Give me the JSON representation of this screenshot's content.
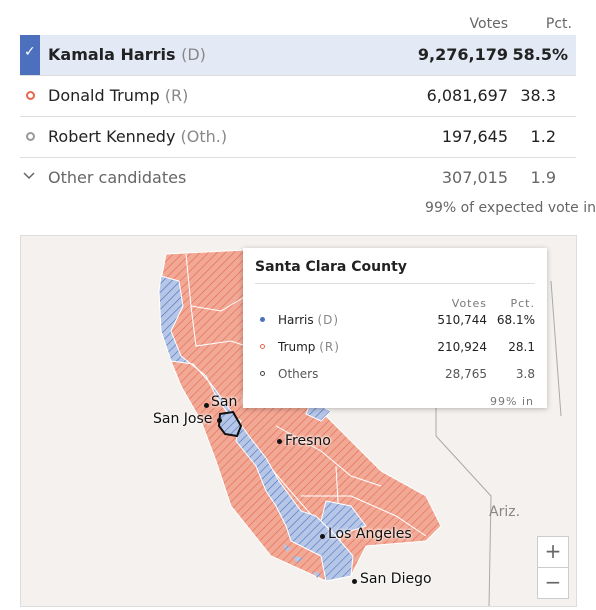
{
  "results": {
    "header": {
      "votes": "Votes",
      "pct": "Pct."
    },
    "rows": [
      {
        "name": "Kamala Harris",
        "party": "(D)",
        "votes": "9,276,179",
        "pct": "58.5%"
      },
      {
        "name": "Donald Trump",
        "party": "(R)",
        "votes": "6,081,697",
        "pct": "38.3"
      },
      {
        "name": "Robert Kennedy",
        "party": "(Oth.)",
        "votes": "197,645",
        "pct": "1.2"
      },
      {
        "name": "Other candidates",
        "votes": "307,015",
        "pct": "1.9"
      }
    ],
    "expected": "99% of expected vote in"
  },
  "map": {
    "cities": {
      "san_francisco": "San Francisco",
      "san_jose": "San Jose",
      "fresno": "Fresno",
      "los_angeles": "Los Angeles",
      "san_diego": "San Diego"
    },
    "neighbor": "Ariz.",
    "zoom_in": "+",
    "zoom_out": "−",
    "colors": {
      "dem": "#4c6fbe",
      "rep": "#e6664f",
      "dem_fill": "#b6c6e7",
      "rep_fill": "#f1a996"
    }
  },
  "tooltip": {
    "title": "Santa Clara County",
    "header": {
      "votes": "Votes",
      "pct": "Pct."
    },
    "rows": [
      {
        "name": "Harris",
        "party": "(D)",
        "votes": "510,744",
        "pct": "68.1%"
      },
      {
        "name": "Trump",
        "party": "(R)",
        "votes": "210,924",
        "pct": "28.1"
      },
      {
        "name": "Others",
        "party": "",
        "votes": "28,765",
        "pct": "3.8"
      }
    ],
    "footer": "99% in"
  }
}
